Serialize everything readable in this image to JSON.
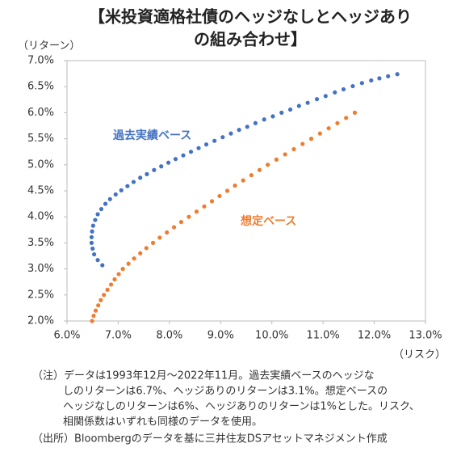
{
  "chart_data": {
    "type": "scatter",
    "title_lines": [
      "【米投資適格社債のヘッジなしとヘッジあり",
      "の組み合わせ】"
    ],
    "y_label": "（リターン）",
    "x_label": "（リスク）",
    "xlim": [
      6,
      13
    ],
    "ylim": [
      2,
      7
    ],
    "xticks": [
      {
        "value": 6,
        "label": "6.0%"
      },
      {
        "value": 7,
        "label": "7.0%"
      },
      {
        "value": 8,
        "label": "8.0%"
      },
      {
        "value": 9,
        "label": "9.0%"
      },
      {
        "value": 10,
        "label": "10.0%"
      },
      {
        "value": 11,
        "label": "11.0%"
      },
      {
        "value": 12,
        "label": "12.0%"
      },
      {
        "value": 13,
        "label": "13.0%"
      }
    ],
    "yticks": [
      {
        "value": 2,
        "label": "2.0%"
      },
      {
        "value": 2.5,
        "label": "2.5%"
      },
      {
        "value": 3,
        "label": "3.0%"
      },
      {
        "value": 3.5,
        "label": "3.5%"
      },
      {
        "value": 4,
        "label": "4.0%"
      },
      {
        "value": 4.5,
        "label": "4.5%"
      },
      {
        "value": 5,
        "label": "5.0%"
      },
      {
        "value": 5.5,
        "label": "5.5%"
      },
      {
        "value": 6,
        "label": "6.0%"
      },
      {
        "value": 6.5,
        "label": "6.5%"
      },
      {
        "value": 7,
        "label": "7.0%"
      }
    ],
    "series": [
      {
        "name": "過去実績ベース",
        "color": "#4472c4",
        "x": [
          6.69,
          6.6,
          6.53,
          6.5,
          6.48,
          6.48,
          6.49,
          6.51,
          6.55,
          6.6,
          6.67,
          6.75,
          6.84,
          6.95,
          7.06,
          7.18,
          7.3,
          7.43,
          7.56,
          7.7,
          7.84,
          7.98,
          8.12,
          8.27,
          8.42,
          8.57,
          8.72,
          8.88,
          9.04,
          9.2,
          9.36,
          9.52,
          9.68,
          9.85,
          10.02,
          10.19,
          10.36,
          10.53,
          10.7,
          10.88,
          11.05,
          11.23,
          11.4,
          11.58,
          11.76,
          11.94,
          12.1,
          12.27,
          12.45
        ],
        "values": [
          3.07,
          3.17,
          3.28,
          3.39,
          3.5,
          3.61,
          3.72,
          3.83,
          3.94,
          4.05,
          4.15,
          4.25,
          4.34,
          4.43,
          4.51,
          4.59,
          4.67,
          4.75,
          4.82,
          4.9,
          4.97,
          5.04,
          5.11,
          5.18,
          5.25,
          5.32,
          5.39,
          5.46,
          5.53,
          5.6,
          5.67,
          5.73,
          5.8,
          5.87,
          5.93,
          6.0,
          6.06,
          6.13,
          6.19,
          6.26,
          6.32,
          6.39,
          6.45,
          6.51,
          6.57,
          6.62,
          6.66,
          6.7,
          6.74
        ]
      },
      {
        "name": "想定ベース",
        "color": "#ed7d31",
        "x": [
          6.49,
          6.52,
          6.56,
          6.61,
          6.66,
          6.72,
          6.79,
          6.86,
          6.93,
          7.01,
          7.09,
          7.2,
          7.31,
          7.43,
          7.55,
          7.68,
          7.81,
          7.95,
          8.09,
          8.23,
          8.38,
          8.53,
          8.68,
          8.83,
          8.98,
          9.13,
          9.28,
          9.44,
          9.6,
          9.76,
          9.92,
          10.09,
          10.26,
          10.43,
          10.6,
          10.77,
          10.94,
          11.11,
          11.28,
          11.45,
          11.62
        ],
        "values": [
          2.0,
          2.1,
          2.2,
          2.3,
          2.4,
          2.5,
          2.6,
          2.7,
          2.8,
          2.9,
          3.0,
          3.1,
          3.2,
          3.3,
          3.4,
          3.5,
          3.6,
          3.7,
          3.8,
          3.9,
          4.0,
          4.1,
          4.2,
          4.3,
          4.4,
          4.5,
          4.6,
          4.7,
          4.8,
          4.9,
          5.0,
          5.1,
          5.2,
          5.3,
          5.4,
          5.5,
          5.6,
          5.7,
          5.8,
          5.9,
          6.0
        ]
      }
    ],
    "notes": [
      "（注）データは1993年12月～2022年11月。過去実績ベースのヘッジな",
      "しのリターンは6.7%、ヘッジありのリターンは3.1%。想定ベースの",
      "ヘッジなしのリターンは6%、ヘッジありのリターンは1%とした。リスク、",
      "相関係数はいずれも同様のデータを使用。",
      "（出所）Bloombergのデータを基に三井住友DSアセットマネジメント作成"
    ]
  }
}
